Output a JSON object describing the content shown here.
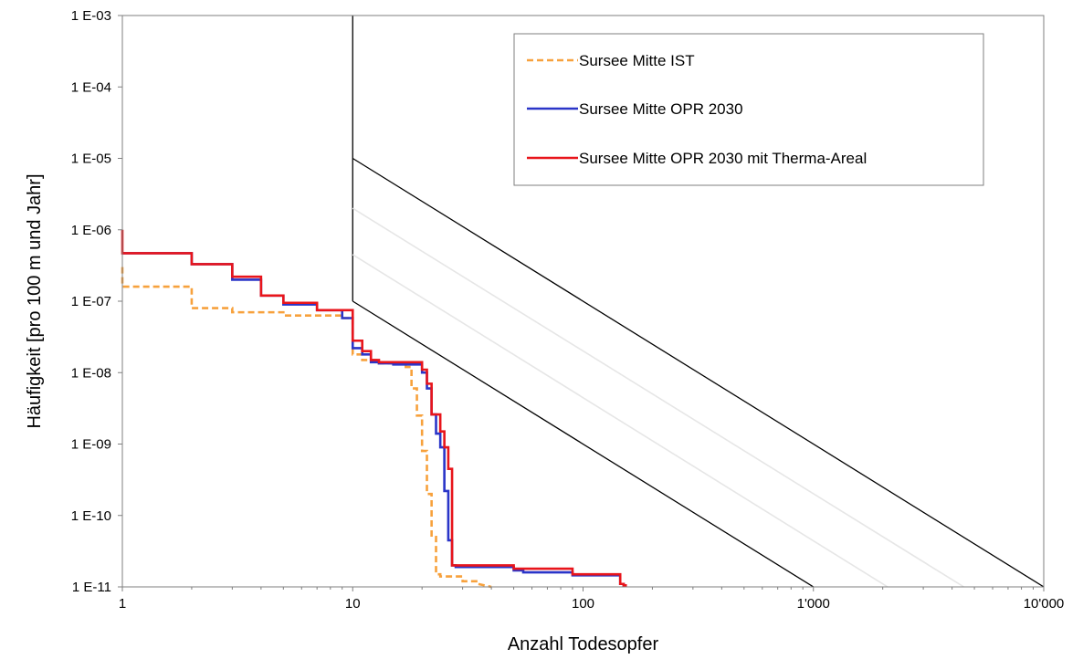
{
  "chart_data": {
    "type": "line",
    "title": "",
    "xlabel": "Anzahl Todesopfer",
    "ylabel": "Häufigkeit [pro 100 m und Jahr]",
    "x_scale": "log",
    "y_scale": "log",
    "xlim": [
      1,
      10000
    ],
    "ylim": [
      1e-11,
      0.001
    ],
    "grid": false,
    "legend_position": "top-right",
    "x_ticks": [
      {
        "value": 1,
        "label": "1"
      },
      {
        "value": 10,
        "label": "10"
      },
      {
        "value": 100,
        "label": "100"
      },
      {
        "value": 1000,
        "label": "1'000"
      },
      {
        "value": 10000,
        "label": "10'000"
      }
    ],
    "y_ticks": [
      {
        "value": 0.001,
        "label": "1 E-03"
      },
      {
        "value": 0.0001,
        "label": "1 E-04"
      },
      {
        "value": 1e-05,
        "label": "1 E-05"
      },
      {
        "value": 1e-06,
        "label": "1 E-06"
      },
      {
        "value": 1e-07,
        "label": "1 E-07"
      },
      {
        "value": 1e-08,
        "label": "1 E-08"
      },
      {
        "value": 1e-09,
        "label": "1 E-09"
      },
      {
        "value": 1e-10,
        "label": "1 E-10"
      },
      {
        "value": 1e-11,
        "label": "1 E-11"
      }
    ],
    "criteria_lines": [
      {
        "color": "#000000",
        "points": [
          [
            10,
            0.001
          ],
          [
            10,
            1e-07
          ]
        ]
      },
      {
        "color": "#000000",
        "points": [
          [
            10,
            1e-05
          ],
          [
            10000,
            1e-11
          ]
        ]
      },
      {
        "color": "#000000",
        "points": [
          [
            10,
            1e-07
          ],
          [
            1000,
            1e-11
          ]
        ]
      },
      {
        "color": "#e6e6e6",
        "points": [
          [
            10,
            2e-06
          ],
          [
            4500,
            1e-11
          ]
        ]
      },
      {
        "color": "#e6e6e6",
        "points": [
          [
            10,
            4.5e-07
          ],
          [
            2100,
            1e-11
          ]
        ]
      }
    ],
    "series": [
      {
        "name": "Sursee Mitte IST",
        "color": "#f7a13c",
        "dash": true,
        "x": [
          1,
          1,
          2,
          2,
          3,
          3,
          5,
          5,
          9,
          9,
          10,
          10,
          11,
          11,
          13,
          13,
          17,
          17,
          18,
          18,
          19,
          19,
          20,
          20,
          21,
          21,
          22,
          22,
          23,
          23,
          24,
          24,
          30,
          30,
          35,
          35,
          40
        ],
        "y": [
          3e-07,
          1.6e-07,
          1.6e-07,
          8e-08,
          8e-08,
          7e-08,
          7e-08,
          6.3e-08,
          6.3e-08,
          5.8e-08,
          5.8e-08,
          1.8e-08,
          1.8e-08,
          1.5e-08,
          1.5e-08,
          1.35e-08,
          1.35e-08,
          1.2e-08,
          1.2e-08,
          6e-09,
          6e-09,
          2.5e-09,
          2.5e-09,
          8e-10,
          8e-10,
          2e-10,
          2e-10,
          5e-11,
          5e-11,
          1.5e-11,
          1.5e-11,
          1.4e-11,
          1.4e-11,
          1.2e-11,
          1.2e-11,
          1.1e-11,
          1e-11
        ]
      },
      {
        "name": "Sursee Mitte OPR 2030",
        "color": "#2a35c8",
        "dash": false,
        "x": [
          1,
          2,
          2,
          3,
          3,
          4,
          4,
          5,
          5,
          7,
          7,
          9,
          9,
          10,
          10,
          11,
          11,
          12,
          12,
          13,
          13,
          15,
          15,
          20,
          20,
          21,
          21,
          22,
          22,
          23,
          23,
          24,
          24,
          25,
          25,
          26,
          26,
          27,
          27,
          28,
          28,
          50,
          50,
          55,
          55,
          90,
          90,
          145,
          145,
          150,
          150,
          155
        ],
        "y": [
          4.7e-07,
          4.7e-07,
          3.3e-07,
          3.3e-07,
          2e-07,
          2e-07,
          1.2e-07,
          1.2e-07,
          9e-08,
          9e-08,
          7.5e-08,
          7.5e-08,
          5.8e-08,
          5.8e-08,
          2.2e-08,
          2.2e-08,
          1.8e-08,
          1.8e-08,
          1.4e-08,
          1.4e-08,
          1.35e-08,
          1.35e-08,
          1.3e-08,
          1.3e-08,
          1e-08,
          1e-08,
          6e-09,
          6e-09,
          2.6e-09,
          2.6e-09,
          1.4e-09,
          1.4e-09,
          9e-10,
          9e-10,
          2.2e-10,
          2.2e-10,
          4.5e-11,
          4.5e-11,
          2e-11,
          2e-11,
          1.9e-11,
          1.9e-11,
          1.7e-11,
          1.7e-11,
          1.6e-11,
          1.6e-11,
          1.45e-11,
          1.45e-11,
          1.1e-11,
          1.1e-11,
          1.05e-11,
          1.05e-11
        ]
      },
      {
        "name": "Sursee Mitte OPR 2030 mit Therma-Areal",
        "color": "#e8151b",
        "dash": false,
        "x": [
          1,
          1,
          2,
          2,
          3,
          3,
          4,
          4,
          5,
          5,
          7,
          7,
          10,
          10,
          11,
          11,
          12,
          12,
          13,
          13,
          20,
          20,
          21,
          21,
          22,
          22,
          24,
          24,
          25,
          25,
          26,
          26,
          27,
          27,
          28,
          28,
          50,
          50,
          90,
          90,
          145,
          145,
          150,
          150,
          155
        ],
        "y": [
          1e-06,
          4.7e-07,
          4.7e-07,
          3.3e-07,
          3.3e-07,
          2.2e-07,
          2.2e-07,
          1.2e-07,
          1.2e-07,
          9.5e-08,
          9.5e-08,
          7.5e-08,
          7.5e-08,
          2.8e-08,
          2.8e-08,
          2e-08,
          2e-08,
          1.5e-08,
          1.5e-08,
          1.4e-08,
          1.4e-08,
          1.1e-08,
          1.1e-08,
          7e-09,
          7e-09,
          2.6e-09,
          2.6e-09,
          1.5e-09,
          1.5e-09,
          9e-10,
          9e-10,
          4.5e-10,
          4.5e-10,
          2e-11,
          2e-11,
          2e-11,
          2e-11,
          1.8e-11,
          1.8e-11,
          1.5e-11,
          1.5e-11,
          1.1e-11,
          1.1e-11,
          1.05e-11,
          1.05e-11
        ]
      }
    ]
  }
}
